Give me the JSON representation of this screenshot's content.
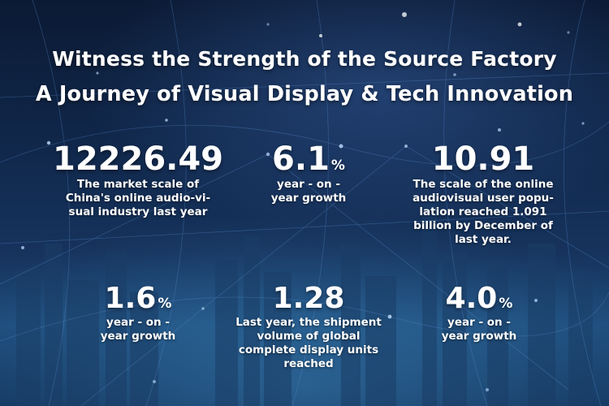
{
  "title_line1": "Witness the Strength of the Source Factory",
  "title_line2": "A Journey of Visual Display & Tech Innovation",
  "stats": [
    {
      "value": "12226.49",
      "unit": "",
      "desc": "The market scale of China's online audio-vi- sual industry last year"
    },
    {
      "value": "6.1",
      "unit": "%",
      "desc": "year - on - year growth"
    },
    {
      "value": "10.91",
      "unit": "",
      "desc": "The scale of the online audiovisual user popu- lation reached 1.091 billion by December of last year."
    },
    {
      "value": "1.6",
      "unit": "%",
      "desc": "year - on - year growth"
    },
    {
      "value": "1.28",
      "unit": "",
      "desc": "Last year, the shipment volume of global complete display units reached"
    },
    {
      "value": "4.0",
      "unit": "%",
      "desc": "year - on - year growth"
    }
  ],
  "colors": {
    "bg_top": "#0b1a34",
    "bg_bottom": "#1d4a78",
    "text": "#ffffff"
  }
}
